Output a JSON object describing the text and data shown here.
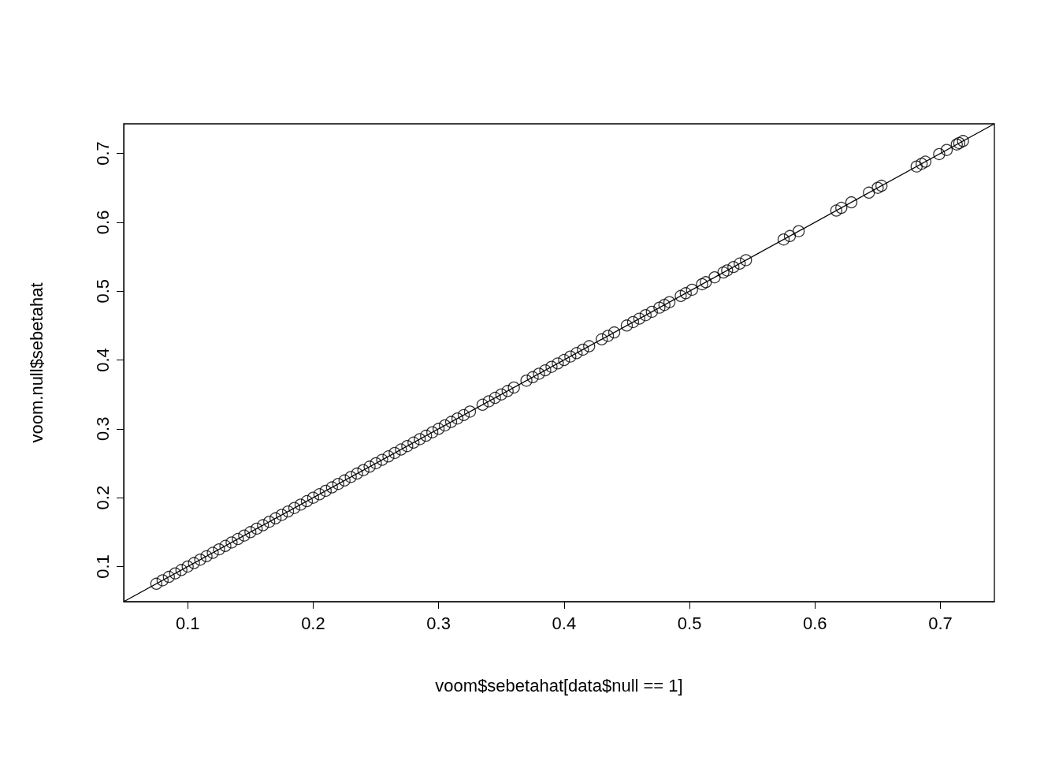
{
  "chart_data": {
    "type": "scatter",
    "xlabel": "voom$sebetahat[data$null == 1]",
    "ylabel": "voom.null$sebetahat",
    "xlim": [
      0.049,
      0.743
    ],
    "ylim": [
      0.049,
      0.743
    ],
    "xticks": [
      0.1,
      0.2,
      0.3,
      0.4,
      0.5,
      0.6,
      0.7
    ],
    "yticks": [
      0.1,
      0.2,
      0.3,
      0.4,
      0.5,
      0.6,
      0.7
    ],
    "grid": false,
    "marker": "circle",
    "series": [
      {
        "color": "#000000",
        "x": [
          0.075,
          0.08,
          0.085,
          0.09,
          0.095,
          0.1,
          0.105,
          0.11,
          0.115,
          0.12,
          0.125,
          0.13,
          0.135,
          0.14,
          0.145,
          0.15,
          0.155,
          0.16,
          0.165,
          0.17,
          0.175,
          0.18,
          0.185,
          0.19,
          0.195,
          0.2,
          0.205,
          0.21,
          0.215,
          0.22,
          0.225,
          0.23,
          0.235,
          0.24,
          0.245,
          0.25,
          0.255,
          0.26,
          0.265,
          0.27,
          0.275,
          0.28,
          0.285,
          0.29,
          0.295,
          0.3,
          0.305,
          0.31,
          0.315,
          0.32,
          0.325,
          0.335,
          0.34,
          0.345,
          0.35,
          0.355,
          0.36,
          0.37,
          0.375,
          0.38,
          0.385,
          0.39,
          0.395,
          0.4,
          0.405,
          0.41,
          0.415,
          0.42,
          0.43,
          0.435,
          0.44,
          0.45,
          0.455,
          0.46,
          0.465,
          0.47,
          0.476,
          0.48,
          0.484,
          0.493,
          0.497,
          0.502,
          0.51,
          0.513,
          0.52,
          0.527,
          0.53,
          0.535,
          0.54,
          0.545,
          0.575,
          0.58,
          0.587,
          0.617,
          0.621,
          0.629,
          0.643,
          0.65,
          0.653,
          0.681,
          0.685,
          0.688,
          0.699,
          0.705,
          0.713,
          0.715,
          0.718
        ],
        "values": [
          0.075,
          0.08,
          0.085,
          0.09,
          0.095,
          0.1,
          0.105,
          0.11,
          0.115,
          0.12,
          0.125,
          0.13,
          0.135,
          0.14,
          0.145,
          0.15,
          0.155,
          0.16,
          0.165,
          0.17,
          0.175,
          0.18,
          0.185,
          0.19,
          0.195,
          0.2,
          0.205,
          0.21,
          0.215,
          0.22,
          0.225,
          0.23,
          0.235,
          0.24,
          0.245,
          0.25,
          0.255,
          0.26,
          0.265,
          0.27,
          0.275,
          0.28,
          0.285,
          0.29,
          0.295,
          0.3,
          0.305,
          0.31,
          0.315,
          0.32,
          0.325,
          0.335,
          0.34,
          0.345,
          0.35,
          0.355,
          0.36,
          0.37,
          0.375,
          0.38,
          0.385,
          0.39,
          0.395,
          0.4,
          0.405,
          0.41,
          0.415,
          0.42,
          0.43,
          0.435,
          0.44,
          0.45,
          0.455,
          0.46,
          0.465,
          0.47,
          0.476,
          0.48,
          0.484,
          0.493,
          0.497,
          0.502,
          0.51,
          0.513,
          0.52,
          0.527,
          0.53,
          0.535,
          0.54,
          0.545,
          0.575,
          0.58,
          0.587,
          0.617,
          0.621,
          0.629,
          0.643,
          0.65,
          0.653,
          0.681,
          0.685,
          0.688,
          0.699,
          0.705,
          0.713,
          0.715,
          0.718
        ]
      },
      {
        "type": "line",
        "marker": "none",
        "color": "#000000",
        "x": [
          0.049,
          0.743
        ],
        "values": [
          0.049,
          0.743
        ]
      }
    ]
  }
}
